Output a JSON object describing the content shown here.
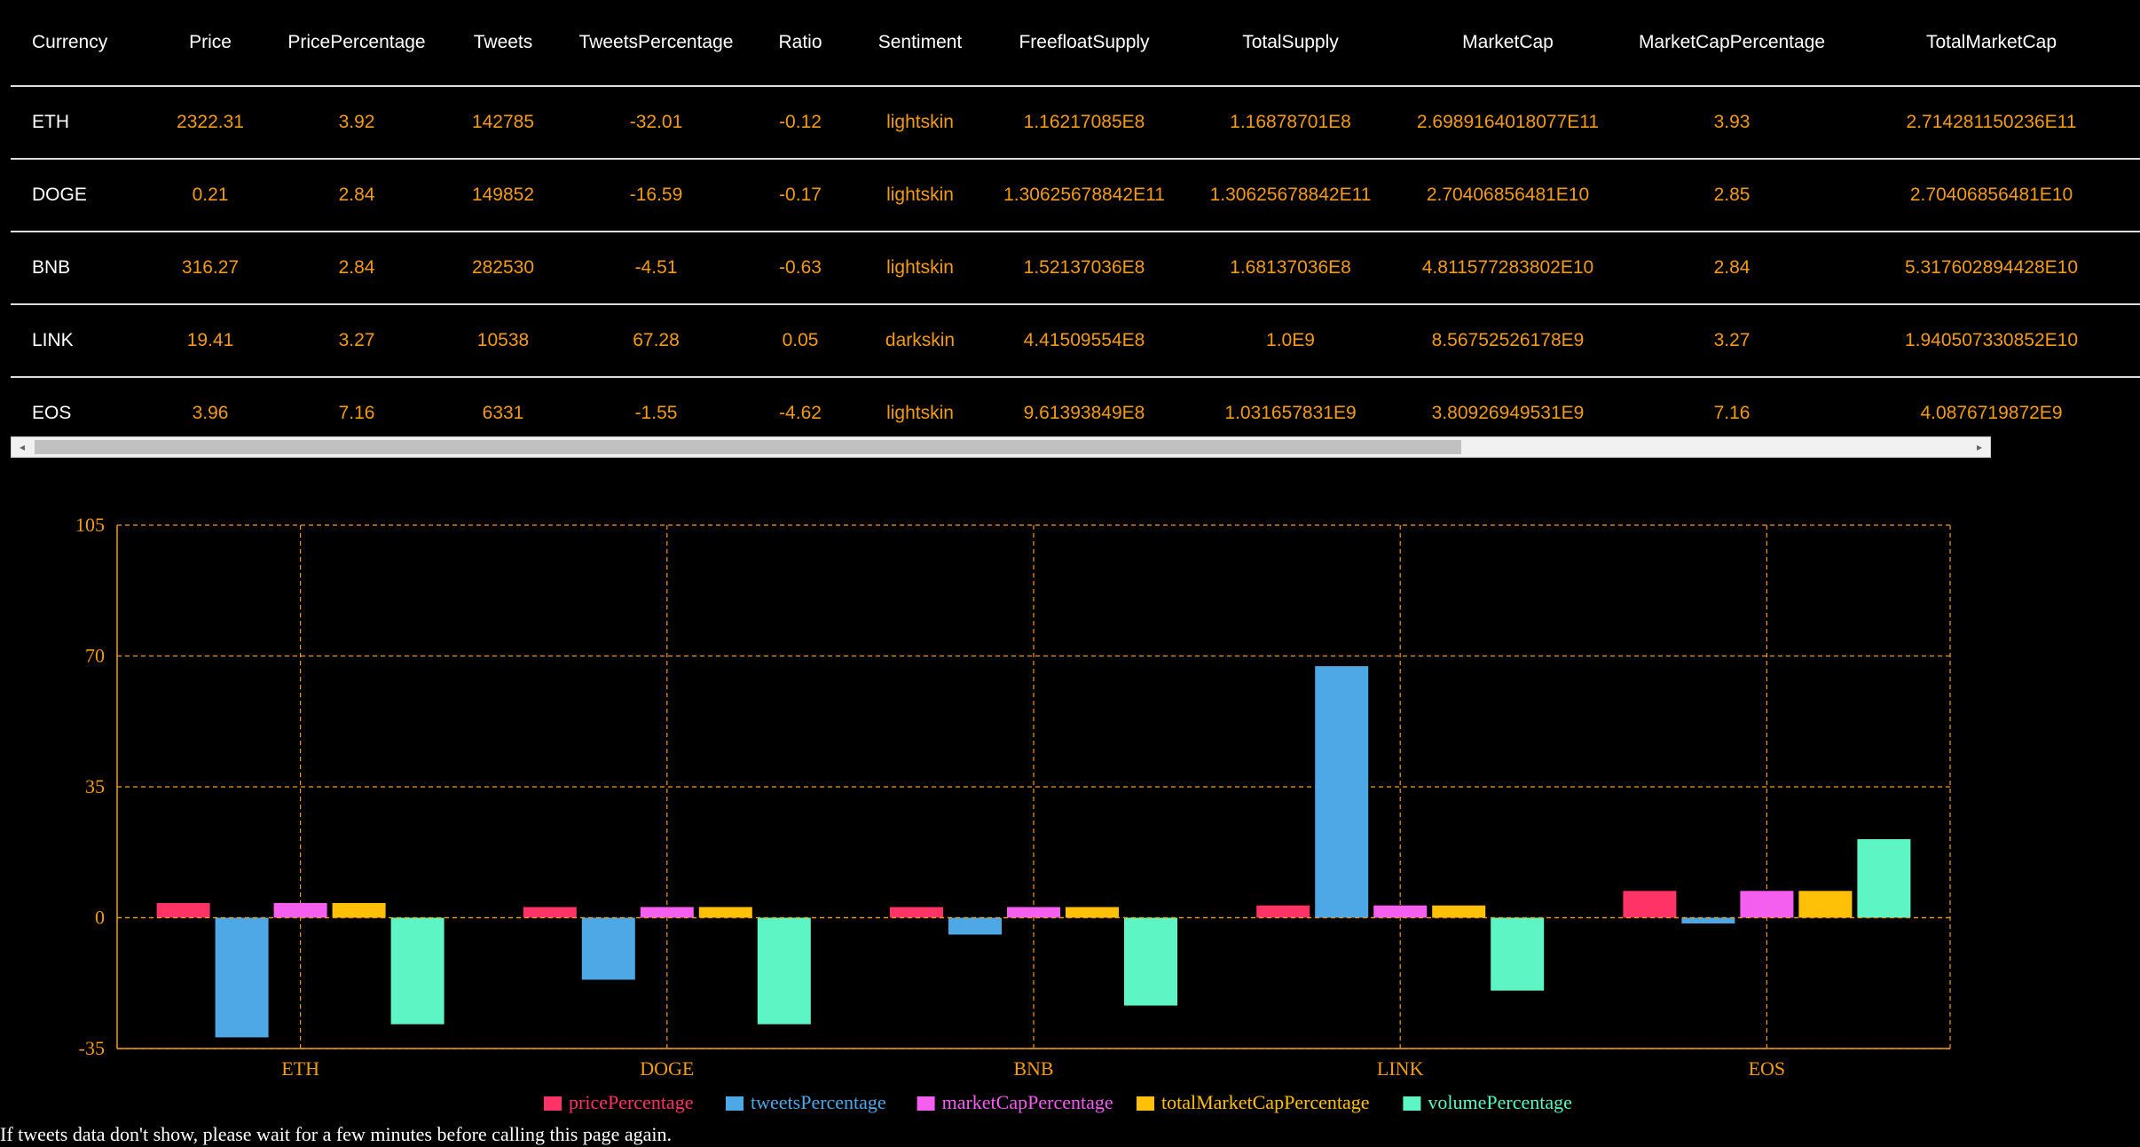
{
  "table": {
    "headers": [
      "Currency",
      "Price",
      "PricePercentage",
      "Tweets",
      "TweetsPercentage",
      "Ratio",
      "Sentiment",
      "FreefloatSupply",
      "TotalSupply",
      "MarketCap",
      "MarketCapPercentage",
      "TotalMarketCap"
    ],
    "rows": [
      [
        "ETH",
        "2322.31",
        "3.92",
        "142785",
        "-32.01",
        "-0.12",
        "lightskin",
        "1.16217085E8",
        "1.16878701E8",
        "2.6989164018077E11",
        "3.93",
        "2.714281150236E11"
      ],
      [
        "DOGE",
        "0.21",
        "2.84",
        "149852",
        "-16.59",
        "-0.17",
        "lightskin",
        "1.30625678842E11",
        "1.30625678842E11",
        "2.70406856481E10",
        "2.85",
        "2.70406856481E10"
      ],
      [
        "BNB",
        "316.27",
        "2.84",
        "282530",
        "-4.51",
        "-0.63",
        "lightskin",
        "1.52137036E8",
        "1.68137036E8",
        "4.811577283802E10",
        "2.84",
        "5.317602894428E10"
      ],
      [
        "LINK",
        "19.41",
        "3.27",
        "10538",
        "67.28",
        "0.05",
        "darkskin",
        "4.41509554E8",
        "1.0E9",
        "8.56752526178E9",
        "3.27",
        "1.940507330852E10"
      ],
      [
        "EOS",
        "3.96",
        "7.16",
        "6331",
        "-1.55",
        "-4.62",
        "lightskin",
        "9.61393849E8",
        "1.031657831E9",
        "3.80926949531E9",
        "7.16",
        "4.0876719872E9"
      ]
    ]
  },
  "scrollbar": {
    "left_arrow": "◂",
    "right_arrow": "▸"
  },
  "chart_data": {
    "type": "bar",
    "categories": [
      "ETH",
      "DOGE",
      "BNB",
      "LINK",
      "EOS"
    ],
    "series": [
      {
        "name": "pricePercentage",
        "color": "#ff3366",
        "values": [
          3.92,
          2.84,
          2.84,
          3.27,
          7.16
        ]
      },
      {
        "name": "tweetsPercentage",
        "color": "#4ea8e6",
        "values": [
          -32.01,
          -16.59,
          -4.51,
          67.28,
          -1.55
        ]
      },
      {
        "name": "marketCapPercentage",
        "color": "#f45ff0",
        "values": [
          3.93,
          2.85,
          2.84,
          3.27,
          7.16
        ]
      },
      {
        "name": "totalMarketCapPercentage",
        "color": "#ffc107",
        "values": [
          3.93,
          2.85,
          2.84,
          3.27,
          7.16
        ]
      },
      {
        "name": "volumePercentage",
        "color": "#5cf5c3",
        "values": [
          -28.5,
          -28.5,
          -23.5,
          -19.5,
          21
        ]
      }
    ],
    "yticks": [
      "105",
      "70",
      "35",
      "0",
      "-35"
    ],
    "ylim": [
      -35,
      105
    ],
    "grid": true,
    "legend": "bottom",
    "axis_color": "#f39c12"
  },
  "footer": {
    "note": "If tweets data don't show, please wait for a few minutes before calling this page again."
  }
}
